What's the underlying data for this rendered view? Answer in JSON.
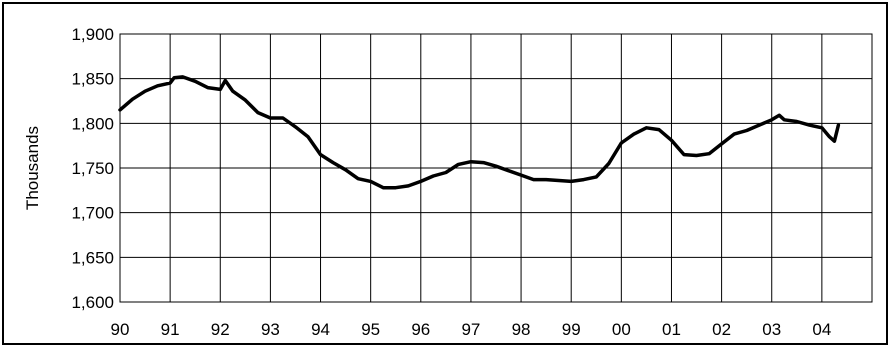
{
  "chart_data": {
    "type": "line",
    "title": "",
    "xlabel": "",
    "ylabel": "Thousands",
    "x_tick_labels": [
      "90",
      "91",
      "92",
      "93",
      "94",
      "95",
      "96",
      "97",
      "98",
      "99",
      "00",
      "01",
      "02",
      "03",
      "04"
    ],
    "y_tick_labels": [
      "1,600",
      "1,650",
      "1,700",
      "1,750",
      "1,800",
      "1,850",
      "1,900"
    ],
    "xlim": [
      1990.0,
      2005.0
    ],
    "ylim": [
      1600,
      1900
    ],
    "grid": true,
    "legend": "none",
    "line_color": "#000000",
    "series": [
      {
        "x": [
          1990.0,
          1990.25,
          1990.5,
          1990.75,
          1991.0,
          1991.08,
          1991.25,
          1991.5,
          1991.75,
          1992.0,
          1992.1,
          1992.25,
          1992.5,
          1992.75,
          1993.0,
          1993.25,
          1993.5,
          1993.75,
          1994.0,
          1994.25,
          1994.5,
          1994.75,
          1995.0,
          1995.25,
          1995.5,
          1995.75,
          1996.0,
          1996.25,
          1996.5,
          1996.75,
          1997.0,
          1997.25,
          1997.5,
          1997.75,
          1998.0,
          1998.25,
          1998.5,
          1998.75,
          1999.0,
          1999.25,
          1999.5,
          1999.75,
          2000.0,
          2000.25,
          2000.5,
          2000.75,
          2001.0,
          2001.25,
          2001.5,
          2001.75,
          2002.0,
          2002.25,
          2002.5,
          2002.75,
          2003.0,
          2003.15,
          2003.25,
          2003.5,
          2003.75,
          2004.0,
          2004.15,
          2004.25,
          2004.33
        ],
        "y": [
          1815,
          1827,
          1836,
          1842,
          1845,
          1851,
          1852,
          1847,
          1840,
          1838,
          1848,
          1836,
          1826,
          1812,
          1806,
          1806,
          1796,
          1785,
          1765,
          1756,
          1748,
          1738,
          1735,
          1728,
          1728,
          1730,
          1735,
          1741,
          1745,
          1754,
          1757,
          1756,
          1752,
          1747,
          1742,
          1737,
          1737,
          1736,
          1735,
          1737,
          1740,
          1755,
          1778,
          1788,
          1795,
          1793,
          1781,
          1765,
          1764,
          1766,
          1777,
          1788,
          1792,
          1798,
          1804,
          1809,
          1804,
          1802,
          1798,
          1795,
          1785,
          1780,
          1798
        ]
      }
    ]
  }
}
